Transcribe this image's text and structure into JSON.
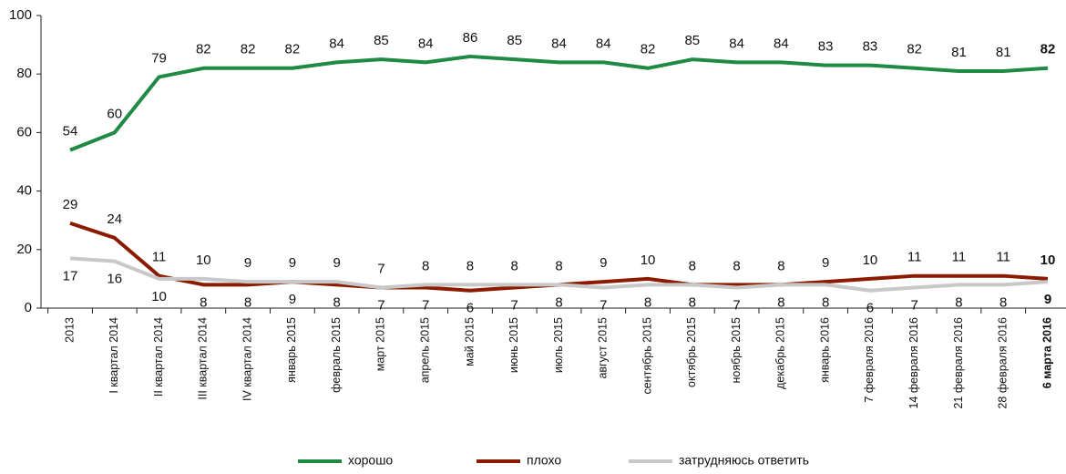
{
  "chart_data": {
    "type": "line",
    "categories": [
      "2013",
      "I квартал 2014",
      "II квартал 2014",
      "III квартал 2014",
      "IV квартал 2014",
      "январь 2015",
      "февраль 2015",
      "март 2015",
      "апрель 2015",
      "май 2015",
      "июнь 2015",
      "июль 2015",
      "август 2015",
      "сентябрь 2015",
      "октябрь 2015",
      "ноябрь 2015",
      "декабрь 2015",
      "январь 2016",
      "7 февраля 2016",
      "14 февраля 2016",
      "21 февраля 2016",
      "28 февраля 2016",
      "6 марта 2016"
    ],
    "series": [
      {
        "name": "хорошо",
        "color": "#1e8a44",
        "values": [
          54,
          60,
          79,
          82,
          82,
          82,
          84,
          85,
          84,
          86,
          85,
          84,
          84,
          82,
          85,
          84,
          84,
          83,
          83,
          82,
          81,
          81,
          82
        ]
      },
      {
        "name": "плохо",
        "color": "#8b1a00",
        "values": [
          29,
          24,
          11,
          8,
          8,
          9,
          8,
          7,
          7,
          6,
          7,
          8,
          9,
          10,
          8,
          8,
          8,
          9,
          10,
          11,
          11,
          11,
          10
        ]
      },
      {
        "name": "затрудняюсь ответить",
        "color": "#c8c8c8",
        "values": [
          17,
          16,
          10,
          10,
          9,
          9,
          9,
          7,
          8,
          8,
          8,
          8,
          7,
          8,
          8,
          7,
          8,
          8,
          6,
          7,
          8,
          8,
          9
        ]
      }
    ],
    "ylim": [
      0,
      100
    ],
    "yticks": [
      0,
      20,
      40,
      60,
      80,
      100
    ],
    "grid": false,
    "legend": "bottom"
  }
}
